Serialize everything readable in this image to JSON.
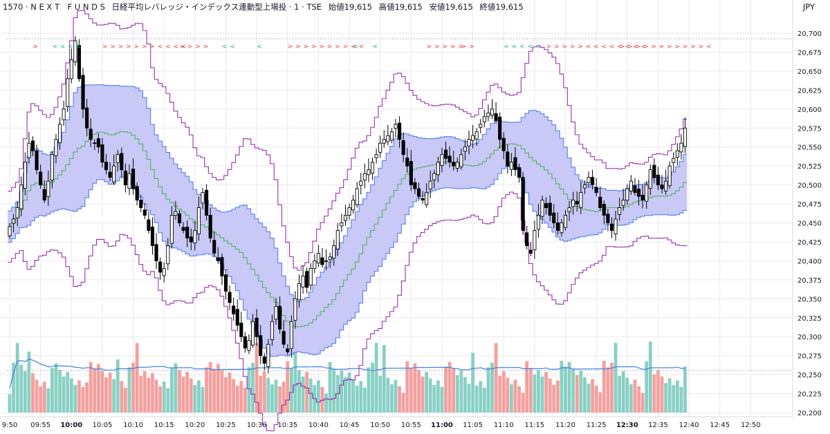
{
  "header": {
    "symbol": "1570 · N E X T　F U N D S",
    "name": "日経平均レバレッジ・インデックス連動型上場投 · 1 · TSE",
    "open": "始値19,615",
    "high": "高値19,615",
    "low": "安値19,615",
    "close": "終値19,615",
    "currency": "JPY"
  },
  "colors": {
    "up": "#ffffff",
    "down": "#000000",
    "band_fill": "#c5c6f7",
    "band_line": "#4a78e6",
    "outer_band": "#9b30b0",
    "mid_line": "#4caf50",
    "vol_up": "#89d0c4",
    "vol_down": "#f4a09e",
    "vol_ma": "#3d7ee6",
    "grid": "#e9e9ee",
    "signal_sell": "#e53935",
    "signal_buy": "#26a69a"
  },
  "chart_data": {
    "type": "candlestick",
    "ylim": [
      20200,
      20700
    ],
    "yticks": [
      "20,700",
      "20,675",
      "20,650",
      "20,625",
      "20,600",
      "20,575",
      "20,550",
      "20,525",
      "20,500",
      "20,475",
      "20,450",
      "20,425",
      "20,400",
      "20,375",
      "20,350",
      "20,325",
      "20,300",
      "20,275",
      "20,250",
      "20,225",
      "20,200"
    ],
    "xticks": [
      {
        "label": "9:50",
        "i": 0,
        "bold": false
      },
      {
        "label": "09:55",
        "i": 8,
        "bold": false
      },
      {
        "label": "10:00",
        "i": 16,
        "bold": true
      },
      {
        "label": "10:05",
        "i": 24,
        "bold": false
      },
      {
        "label": "10:10",
        "i": 32,
        "bold": false
      },
      {
        "label": "10:15",
        "i": 40,
        "bold": false
      },
      {
        "label": "10:20",
        "i": 48,
        "bold": false
      },
      {
        "label": "10:25",
        "i": 56,
        "bold": false
      },
      {
        "label": "10:30",
        "i": 64,
        "bold": false
      },
      {
        "label": "10:35",
        "i": 72,
        "bold": false
      },
      {
        "label": "10:40",
        "i": 80,
        "bold": false
      },
      {
        "label": "10:45",
        "i": 88,
        "bold": false
      },
      {
        "label": "10:50",
        "i": 96,
        "bold": false
      },
      {
        "label": "10:55",
        "i": 104,
        "bold": false
      },
      {
        "label": "11:00",
        "i": 112,
        "bold": true
      },
      {
        "label": "11:05",
        "i": 120,
        "bold": false
      },
      {
        "label": "11:10",
        "i": 128,
        "bold": false
      },
      {
        "label": "11:15",
        "i": 136,
        "bold": false
      },
      {
        "label": "11:20",
        "i": 144,
        "bold": false
      },
      {
        "label": "11:25",
        "i": 152,
        "bold": false
      },
      {
        "label": "12:30",
        "i": 160,
        "bold": true
      },
      {
        "label": "12:35",
        "i": 168,
        "bold": false
      },
      {
        "label": "12:40",
        "i": 176,
        "bold": false
      },
      {
        "label": "12:45",
        "i": 184,
        "bold": false
      },
      {
        "label": "12:50",
        "i": 192,
        "bold": false
      }
    ],
    "closes": [
      20445,
      20455,
      20470,
      20500,
      20530,
      20555,
      20545,
      20520,
      20500,
      20480,
      20505,
      20540,
      20560,
      20580,
      20600,
      20640,
      20665,
      20690,
      20640,
      20600,
      20575,
      20560,
      20555,
      20550,
      20530,
      20520,
      20510,
      20525,
      20540,
      20520,
      20500,
      20515,
      20495,
      20480,
      20470,
      20460,
      20440,
      20420,
      20400,
      20385,
      20390,
      20420,
      20460,
      20465,
      20450,
      20440,
      20430,
      20425,
      20440,
      20470,
      20490,
      20460,
      20430,
      20410,
      20400,
      20380,
      20360,
      20345,
      20330,
      20315,
      20300,
      20285,
      20295,
      20320,
      20300,
      20275,
      20265,
      20290,
      20320,
      20340,
      20310,
      20290,
      20280,
      20320,
      20350,
      20370,
      20380,
      20365,
      20390,
      20400,
      20410,
      20395,
      20400,
      20405,
      20420,
      20440,
      20450,
      20460,
      20470,
      20480,
      20495,
      20505,
      20515,
      20520,
      20530,
      20540,
      20555,
      20560,
      20565,
      20570,
      20580,
      20560,
      20540,
      20525,
      20500,
      20495,
      20485,
      20480,
      20490,
      20505,
      20515,
      20530,
      20540,
      20535,
      20530,
      20525,
      20530,
      20540,
      20550,
      20560,
      20565,
      20570,
      20580,
      20590,
      20595,
      20600,
      20585,
      20560,
      20545,
      20525,
      20530,
      20520,
      20510,
      20440,
      20420,
      20410,
      20440,
      20460,
      20480,
      20470,
      20460,
      20450,
      20440,
      20450,
      20460,
      20470,
      20480,
      20475,
      20490,
      20500,
      20510,
      20500,
      20490,
      20470,
      20460,
      20450,
      20440,
      20455,
      20470,
      20480,
      20495,
      20505,
      20490,
      20485,
      20480,
      20500,
      20520,
      20510,
      20500,
      20495,
      20505,
      20525,
      20535,
      20545,
      20555,
      20575
    ],
    "signals": [
      {
        "text": ">",
        "i": 6,
        "type": "sell"
      },
      {
        "text": "< < < <",
        "i": 11,
        "type": "buy"
      },
      {
        "text": "> > > > > > > < < < <",
        "i": 24,
        "type": "sell"
      },
      {
        "text": "> > > >",
        "i": 44,
        "type": "sell"
      },
      {
        "text": "< <",
        "i": 55,
        "type": "buy"
      },
      {
        "text": "<",
        "i": 64,
        "type": "buy"
      },
      {
        "text": "> > > > > > > > < <",
        "i": 72,
        "type": "sell"
      },
      {
        "text": "<",
        "i": 89,
        "type": "buy"
      },
      {
        "text": "<",
        "i": 94,
        "type": "buy"
      },
      {
        "text": "> > > > >",
        "i": 108,
        "type": "sell"
      },
      {
        "text": "> >",
        "i": 117,
        "type": "sell"
      },
      {
        "text": "< < < < <",
        "i": 128,
        "type": "buy"
      },
      {
        "text": "> > > > > < < < < < < < <",
        "i": 139,
        "type": "sell"
      },
      {
        "text": "> > > > > > > > > > > <",
        "i": 158,
        "type": "sell"
      }
    ]
  }
}
